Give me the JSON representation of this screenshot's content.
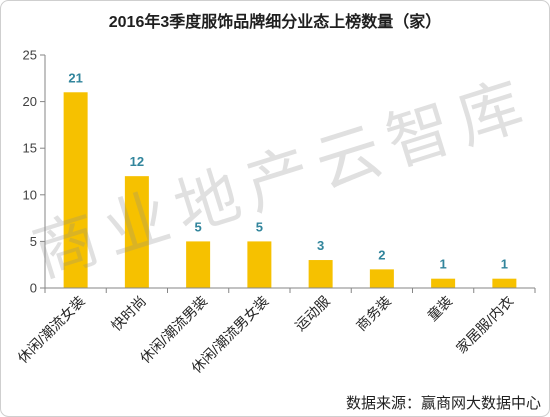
{
  "chart_data": {
    "type": "bar",
    "title": "2016年3季度服饰品牌细分业态上榜数量（家）",
    "categories": [
      "休闲/潮流女装",
      "快时尚",
      "休闲/潮流男装",
      "休闲/潮流男女装",
      "运动服",
      "商务装",
      "童装",
      "家居服/内衣"
    ],
    "values": [
      21,
      12,
      5,
      5,
      3,
      2,
      1,
      1
    ],
    "xlabel": "",
    "ylabel": "",
    "ylim": [
      0,
      25
    ],
    "yticks": [
      0,
      5,
      10,
      15,
      20,
      25
    ],
    "grid": false,
    "bar_color": "#F6C100",
    "label_color": "#31859C"
  },
  "source": "数据来源：赢商网大数据中心",
  "watermark": "商业地产云智库"
}
